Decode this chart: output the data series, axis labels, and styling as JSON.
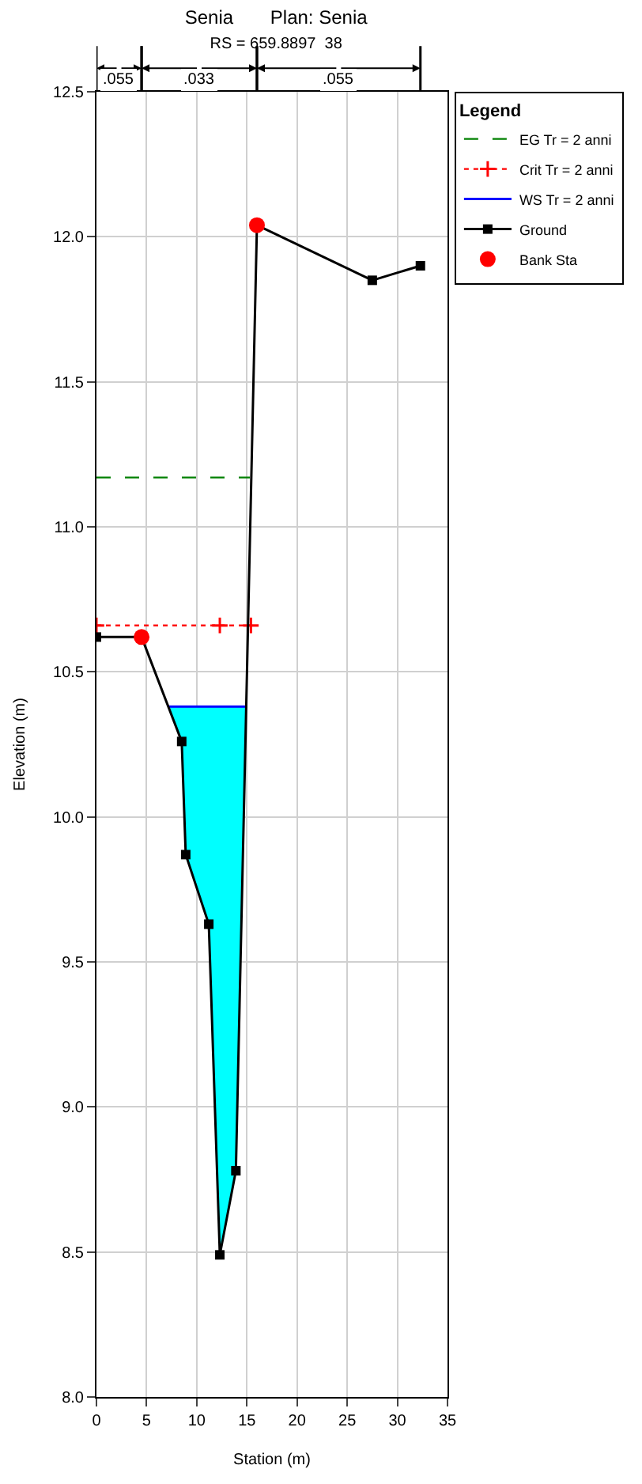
{
  "chart_data": {
    "type": "line",
    "title": "Senia       Plan: Senia",
    "subtitle": "RS = 659.8897  38",
    "xlabel": "Station (m)",
    "ylabel": "Elevation (m)",
    "legend_title": "Legend",
    "xlim": [
      0,
      35
    ],
    "xticks": [
      0,
      5,
      10,
      15,
      20,
      25,
      30,
      35
    ],
    "ylim": [
      8,
      12.5
    ],
    "yticks": [
      {
        "value": 8,
        "label": "8.0"
      },
      {
        "value": 8.5,
        "label": "8.5"
      },
      {
        "value": 9,
        "label": "9.0"
      },
      {
        "value": 9.5,
        "label": "9.5"
      },
      {
        "value": 10,
        "label": "10.0"
      },
      {
        "value": 10.5,
        "label": "10.5"
      },
      {
        "value": 11,
        "label": "11.0"
      },
      {
        "value": 11.5,
        "label": "11.5"
      },
      {
        "value": 12,
        "label": "12.0"
      },
      {
        "value": 12.5,
        "label": "12.5"
      }
    ],
    "grid": true,
    "legend": "top right",
    "annotations": [
      ".055",
      ".033",
      ".055"
    ],
    "series": [
      {
        "name": "EG Tr = 2 anni",
        "color": "#008000",
        "line_style": "dashed",
        "marker": "none",
        "x": [
          0,
          15.3
        ],
        "values": [
          11.17,
          11.17
        ]
      },
      {
        "name": "Crit Tr = 2 anni",
        "color": "#ff0000",
        "line_style": "dotted",
        "marker": "cross",
        "x": [
          0,
          12.3,
          15.4
        ],
        "values": [
          10.66,
          10.66,
          10.66
        ]
      },
      {
        "name": "WS Tr = 2 anni",
        "color": "#0000ff",
        "line_style": "solid",
        "marker": "none",
        "x": [
          7.2,
          15.0
        ],
        "values": [
          10.38,
          10.38
        ]
      },
      {
        "name": "Ground",
        "color": "#000000",
        "line_style": "solid",
        "marker": "square",
        "x": [
          0,
          4.5,
          8.5,
          8.9,
          11.2,
          12.3,
          13.9,
          16.0,
          27.5,
          32.3
        ],
        "values": [
          10.62,
          10.62,
          10.26,
          9.87,
          9.63,
          8.49,
          8.78,
          12.04,
          11.85,
          11.9
        ]
      },
      {
        "name": "Bank Sta",
        "type": "scatter",
        "color": "#ff0000",
        "marker": "circle",
        "x": [
          4.5,
          16.0
        ],
        "values": [
          10.62,
          12.04
        ]
      }
    ]
  }
}
